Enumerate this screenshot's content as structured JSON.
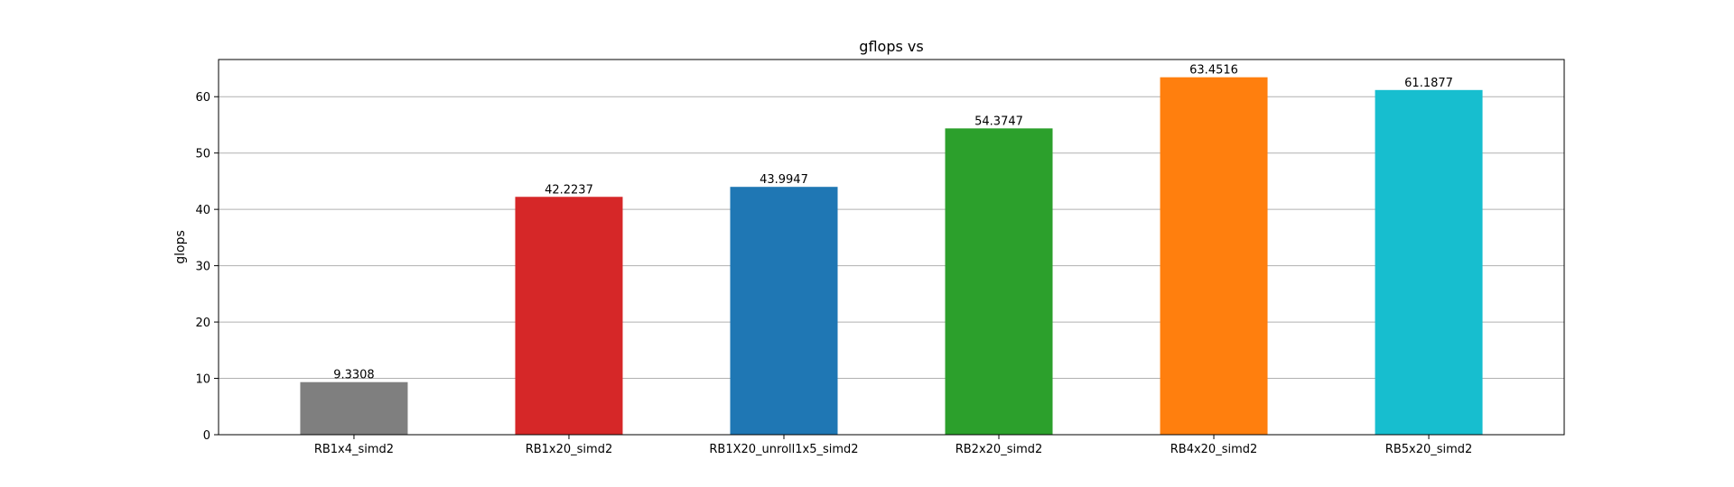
{
  "chart_data": {
    "type": "bar",
    "title": "gflops vs",
    "xlabel": "",
    "ylabel": "glops",
    "ylim": [
      0,
      66.6
    ],
    "yticks": [
      0,
      10,
      20,
      30,
      40,
      50,
      60
    ],
    "grid": "horizontal",
    "categories": [
      "RB1x4_simd2",
      "RB1x20_simd2",
      "RB1X20_unroll1x5_simd2",
      "RB2x20_simd2",
      "RB4x20_simd2",
      "RB5x20_simd2"
    ],
    "values": [
      9.3308,
      42.2237,
      43.9947,
      54.3747,
      63.4516,
      61.1877
    ],
    "value_labels": [
      "9.3308",
      "42.2237",
      "43.9947",
      "54.3747",
      "63.4516",
      "61.1877"
    ],
    "colors": [
      "#7f7f7f",
      "#d62728",
      "#1f77b4",
      "#2ca02c",
      "#ff7f0e",
      "#17becf"
    ]
  }
}
